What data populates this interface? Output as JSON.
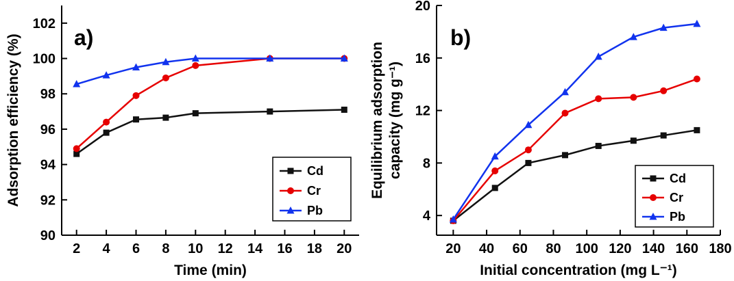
{
  "figure": {
    "background": "#ffffff",
    "axis_color": "#000000",
    "panel_labels": [
      "a)",
      "b)"
    ]
  },
  "chart_data": [
    {
      "type": "line",
      "panel_label": "a)",
      "xlabel": "Time (min)",
      "ylabel_lines": [
        "Adsorption efficiency (%)"
      ],
      "xlim": [
        1,
        21
      ],
      "ylim": [
        90,
        103
      ],
      "xticks": [
        2,
        4,
        6,
        8,
        10,
        12,
        14,
        16,
        18,
        20
      ],
      "yticks": [
        90,
        92,
        94,
        96,
        98,
        100,
        102
      ],
      "grid": false,
      "legend_position": "lower-right",
      "legend": [
        "Cd",
        "Cr",
        "Pb"
      ],
      "x": [
        2,
        4,
        6,
        8,
        10,
        15,
        20
      ],
      "series": [
        {
          "name": "Cd",
          "color": "#111111",
          "marker": "square",
          "values": [
            94.6,
            95.8,
            96.55,
            96.65,
            96.9,
            97.0,
            97.1
          ]
        },
        {
          "name": "Cr",
          "color": "#e60000",
          "marker": "circle",
          "values": [
            94.9,
            96.4,
            97.9,
            98.9,
            99.6,
            100.0,
            100.0
          ]
        },
        {
          "name": "Pb",
          "color": "#1133ee",
          "marker": "triangle",
          "values": [
            98.55,
            99.05,
            99.5,
            99.8,
            100.0,
            100.0,
            100.0
          ]
        }
      ]
    },
    {
      "type": "line",
      "panel_label": "b)",
      "xlabel": "Initial concentration (mg L⁻¹)",
      "ylabel_lines": [
        "Equilibrium adsorption",
        "capacity (mg g⁻¹)"
      ],
      "xlim": [
        10,
        180
      ],
      "ylim": [
        2.5,
        20
      ],
      "xticks": [
        20,
        40,
        60,
        80,
        100,
        120,
        140,
        160,
        180
      ],
      "yticks": [
        4,
        8,
        12,
        16,
        20
      ],
      "grid": false,
      "legend_position": "lower-right",
      "legend": [
        "Cd",
        "Cr",
        "Pb"
      ],
      "x": [
        20,
        45,
        65,
        87,
        107,
        128,
        146,
        166
      ],
      "series": [
        {
          "name": "Cd",
          "color": "#111111",
          "marker": "square",
          "values": [
            3.6,
            6.1,
            8.0,
            8.6,
            9.3,
            9.7,
            10.1,
            10.5
          ]
        },
        {
          "name": "Cr",
          "color": "#e60000",
          "marker": "circle",
          "values": [
            3.6,
            7.4,
            9.0,
            11.8,
            12.9,
            13.0,
            13.5,
            14.4
          ]
        },
        {
          "name": "Pb",
          "color": "#1133ee",
          "marker": "triangle",
          "values": [
            3.7,
            8.5,
            10.9,
            13.4,
            16.1,
            17.6,
            18.3,
            18.6
          ]
        }
      ]
    }
  ]
}
